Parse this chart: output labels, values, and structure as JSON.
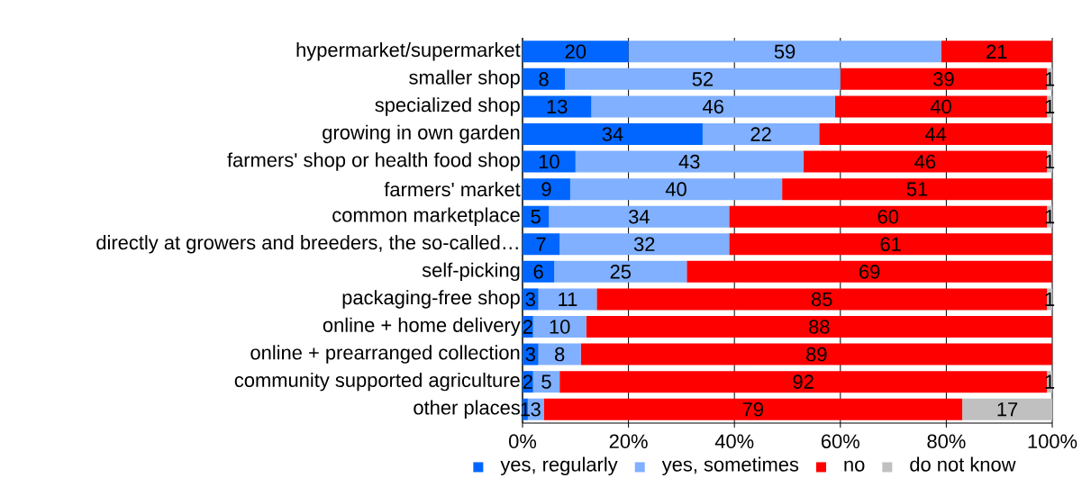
{
  "chart_data": {
    "type": "bar",
    "orientation": "horizontal",
    "stacked": true,
    "categories": [
      "hypermarket/supermarket",
      "smaller shop",
      "specialized shop",
      "growing in own garden",
      "farmers' shop or health food shop",
      "farmers' market",
      "common marketplace",
      "directly at growers and breeders, the so-called…",
      "self-picking",
      "packaging-free shop",
      "online + home delivery",
      "online + prearranged collection",
      "community supported agriculture",
      "other places"
    ],
    "series": [
      {
        "name": "yes, regularly",
        "color": "#0066ff",
        "values": [
          20,
          8,
          13,
          34,
          10,
          9,
          5,
          7,
          6,
          3,
          2,
          3,
          2,
          1
        ],
        "value_labels": [
          "20",
          "8",
          "13",
          "34",
          "10",
          "9",
          "5",
          "7",
          "6",
          "3",
          "2",
          "3",
          "2",
          "1"
        ]
      },
      {
        "name": "yes, sometimes",
        "color": "#80b0ff",
        "values": [
          59,
          52,
          46,
          22,
          43,
          40,
          34,
          32,
          25,
          11,
          10,
          8,
          5,
          3
        ],
        "value_labels": [
          "59",
          "52",
          "46",
          "22",
          "43",
          "40",
          "34",
          "32",
          "25",
          "11",
          "10",
          "8",
          "5",
          "3"
        ]
      },
      {
        "name": "no",
        "color": "#ff0000",
        "values": [
          21,
          39,
          40,
          44,
          46,
          51,
          60,
          61,
          69,
          85,
          88,
          89,
          92,
          79
        ],
        "value_labels": [
          "21",
          "39",
          "40",
          "44",
          "46",
          "51",
          "60",
          "61",
          "69",
          "85",
          "88",
          "89",
          "92",
          "79"
        ]
      },
      {
        "name": "do not know",
        "color": "#c0c0c0",
        "values": [
          0,
          1,
          1,
          0,
          1,
          0,
          1,
          0,
          0,
          1,
          0,
          0,
          1,
          17
        ],
        "value_labels": [
          null,
          "1",
          "1",
          null,
          "1",
          null,
          "1",
          null,
          null,
          "1",
          null,
          null,
          "1",
          "17"
        ]
      }
    ],
    "xlim": [
      0,
      100
    ],
    "xticks": [
      {
        "value": 0,
        "label": "0%"
      },
      {
        "value": 20,
        "label": "20%"
      },
      {
        "value": 40,
        "label": "40%"
      },
      {
        "value": 60,
        "label": "60%"
      },
      {
        "value": 80,
        "label": "80%"
      },
      {
        "value": 100,
        "label": "100%"
      }
    ],
    "grid": "x",
    "legend": "bottom"
  }
}
